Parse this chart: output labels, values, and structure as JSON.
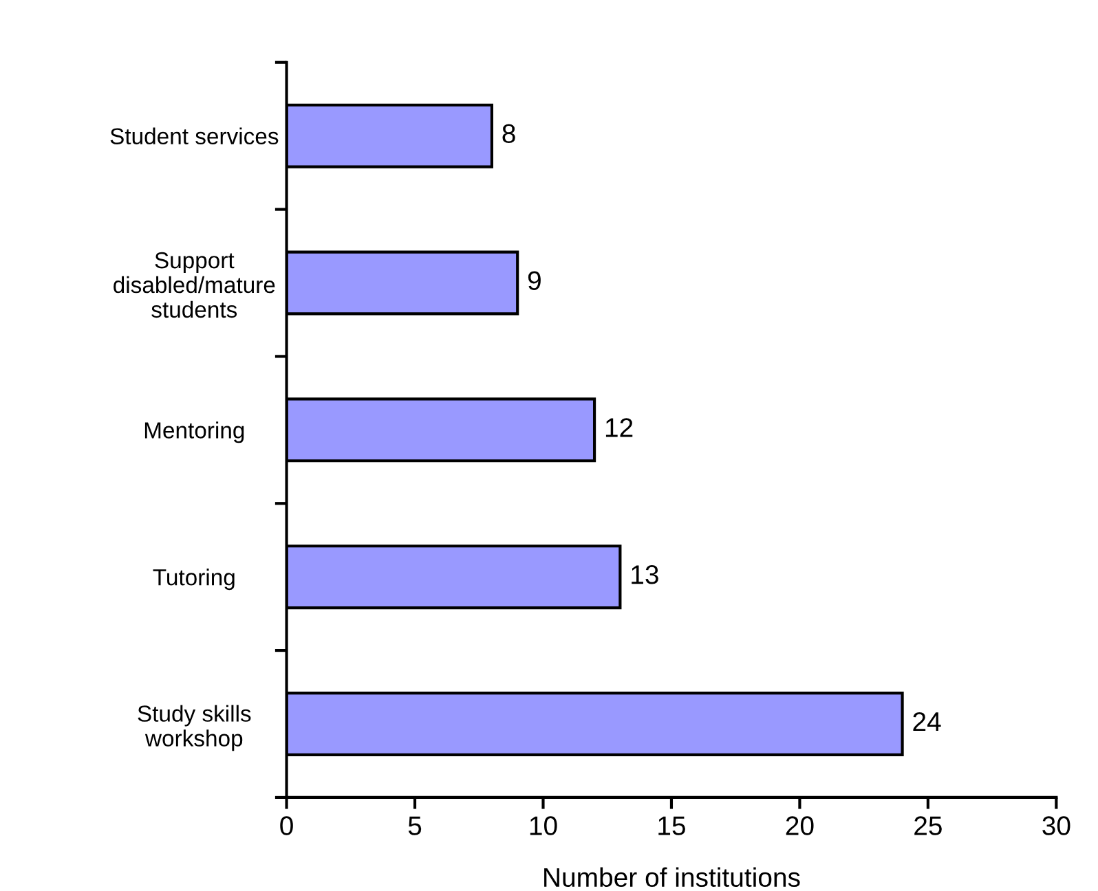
{
  "chart_data": {
    "type": "bar",
    "orientation": "horizontal",
    "xlabel": "Number of institutions",
    "categories": [
      "Student services",
      "Support\ndisabled/mature\nstudents",
      "Mentoring",
      "Tutoring",
      "Study skills\nworkshop"
    ],
    "values": [
      8,
      9,
      12,
      13,
      24
    ],
    "color": "#9999ff",
    "xlim": [
      0,
      30
    ],
    "xticks": [
      0,
      5,
      10,
      15,
      20,
      25,
      30
    ],
    "grid": false,
    "data_labels": true
  }
}
